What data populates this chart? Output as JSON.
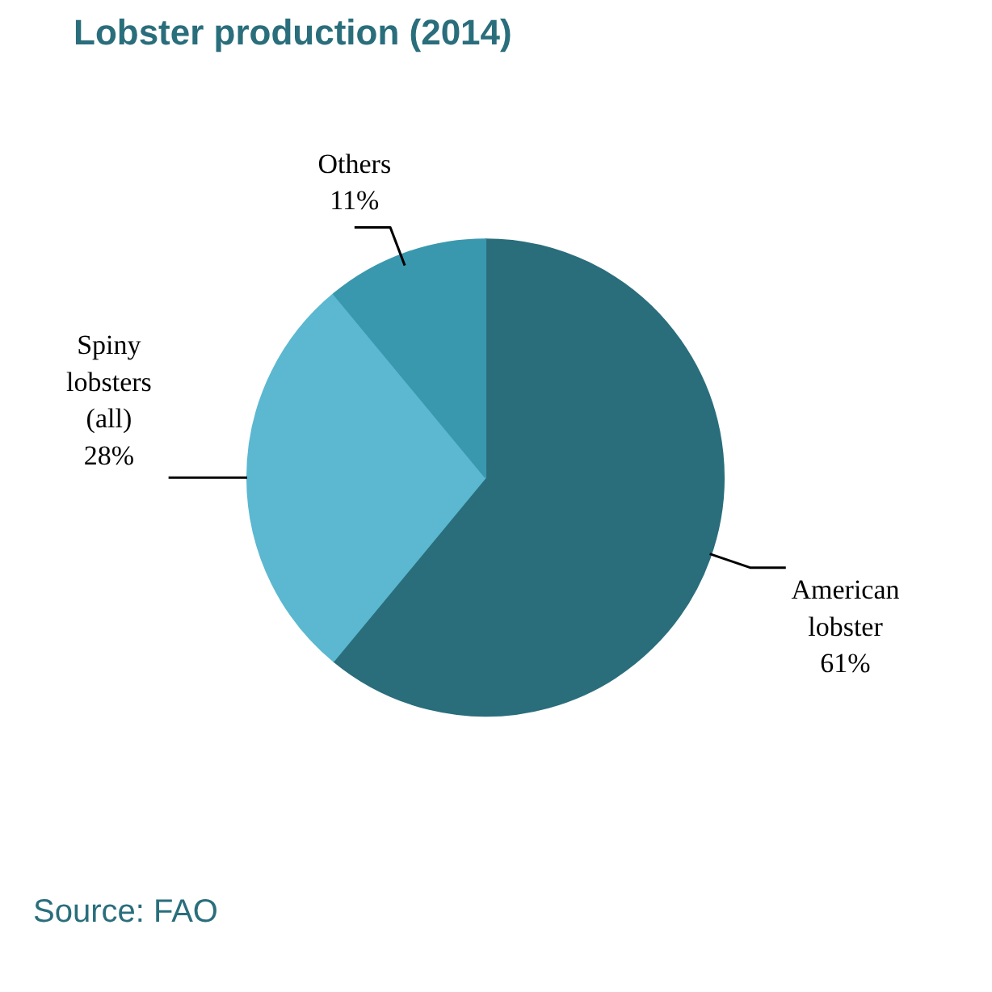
{
  "chart_data": {
    "type": "pie",
    "title": "Lobster production (2014)",
    "categories": [
      "American lobster",
      "Spiny lobsters (all)",
      "Others"
    ],
    "values": [
      61,
      28,
      11
    ],
    "colors": [
      "#2a6e7c",
      "#5bb8d0",
      "#3a98ae"
    ],
    "value_labels": [
      "61%",
      "28%",
      "11%"
    ],
    "annotations": [
      "Source: FAO"
    ]
  }
}
